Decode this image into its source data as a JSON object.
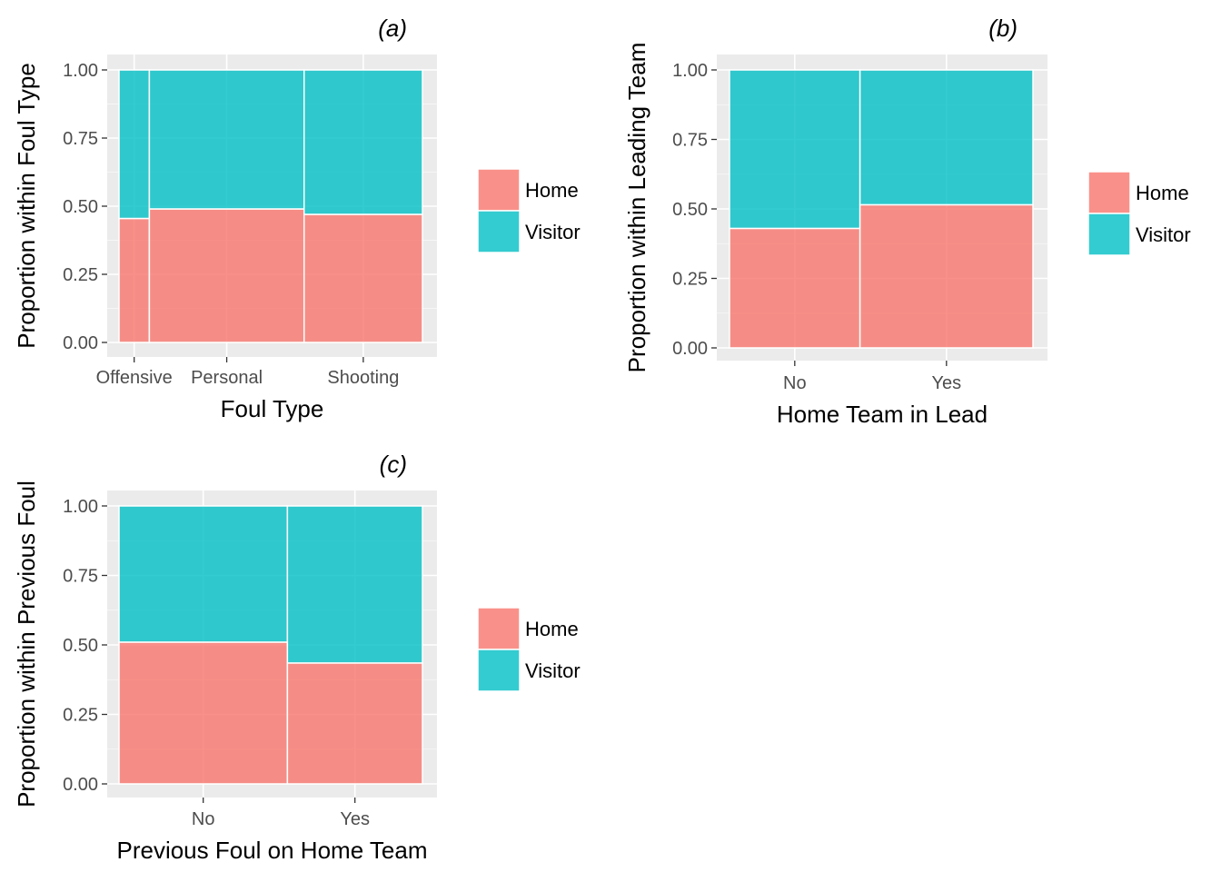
{
  "colors": {
    "home": "#F8766D",
    "visitor": "#00BFC4",
    "panel_bg": "#EBEBEB",
    "grid": "#FFFFFF"
  },
  "legend": {
    "items": [
      "Home",
      "Visitor"
    ]
  },
  "chart_data": [
    {
      "type": "bar",
      "subtype": "mosaic",
      "title": "(a)",
      "xlabel": "Foul Type",
      "ylabel": "Proportion within Foul Type",
      "categories": [
        "Offensive",
        "Personal",
        "Shooting"
      ],
      "widths": [
        0.1,
        0.51,
        0.39
      ],
      "series": [
        {
          "name": "Home",
          "values": [
            0.455,
            0.49,
            0.47
          ]
        },
        {
          "name": "Visitor",
          "values": [
            0.545,
            0.51,
            0.53
          ]
        }
      ],
      "ylim": [
        0,
        1
      ],
      "yticks": [
        "0.00",
        "0.25",
        "0.50",
        "0.75",
        "1.00"
      ],
      "legend": "right"
    },
    {
      "type": "bar",
      "subtype": "mosaic",
      "title": "(b)",
      "xlabel": "Home Team in Lead",
      "ylabel": "Proportion within Leading Team",
      "categories": [
        "No",
        "Yes"
      ],
      "widths": [
        0.43,
        0.57
      ],
      "series": [
        {
          "name": "Home",
          "values": [
            0.43,
            0.515
          ]
        },
        {
          "name": "Visitor",
          "values": [
            0.57,
            0.485
          ]
        }
      ],
      "ylim": [
        0,
        1
      ],
      "yticks": [
        "0.00",
        "0.25",
        "0.50",
        "0.75",
        "1.00"
      ],
      "legend": "right"
    },
    {
      "type": "bar",
      "subtype": "mosaic",
      "title": "(c)",
      "xlabel": "Previous Foul on Home Team",
      "ylabel": "Proportion within Previous Foul",
      "categories": [
        "No",
        "Yes"
      ],
      "widths": [
        0.555,
        0.445
      ],
      "series": [
        {
          "name": "Home",
          "values": [
            0.51,
            0.435
          ]
        },
        {
          "name": "Visitor",
          "values": [
            0.49,
            0.565
          ]
        }
      ],
      "ylim": [
        0,
        1
      ],
      "yticks": [
        "0.00",
        "0.25",
        "0.50",
        "0.75",
        "1.00"
      ],
      "legend": "right"
    }
  ]
}
